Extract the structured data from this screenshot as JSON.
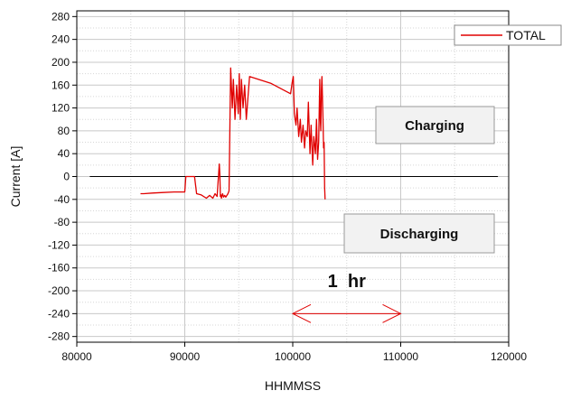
{
  "chart_data": {
    "type": "line",
    "xlabel": "HHMMSS",
    "ylabel": "Current [A]",
    "xlim": [
      80000,
      120000
    ],
    "ylim": [
      -290,
      290
    ],
    "xticks": [
      80000,
      90000,
      100000,
      110000,
      120000
    ],
    "yticks": [
      280,
      240,
      200,
      160,
      120,
      80,
      40,
      0,
      -40,
      -80,
      -120,
      -160,
      -200,
      -240,
      -280
    ],
    "grid": true,
    "legend_position": "top-right",
    "series": [
      {
        "name": "TOTAL",
        "color": "#e00000",
        "x": [
          85900,
          86200,
          87000,
          88000,
          89000,
          90000,
          90100,
          90300,
          90600,
          90900,
          91100,
          91500,
          92000,
          92300,
          92600,
          92800,
          93000,
          93200,
          93250,
          93300,
          93350,
          93400,
          93500,
          93600,
          93700,
          93800,
          94000,
          94100,
          94250,
          94400,
          94500,
          94650,
          94800,
          94950,
          95050,
          95150,
          95250,
          95400,
          95550,
          95700,
          95900,
          96000,
          98000,
          99800,
          99950,
          100050,
          100150,
          100300,
          100400,
          100550,
          100700,
          100800,
          100950,
          101100,
          101200,
          101350,
          101450,
          101600,
          101700,
          101850,
          101950,
          102100,
          102200,
          102300,
          102400,
          102500,
          102550,
          102600,
          102650,
          102700,
          102800,
          102850,
          102900,
          102950,
          103000
        ],
        "y": [
          -30,
          -30,
          -29,
          -28,
          -27,
          -27,
          0,
          0,
          0,
          0,
          -30,
          -32,
          -38,
          -33,
          -38,
          -30,
          -35,
          22,
          5,
          -35,
          -32,
          -38,
          -30,
          -36,
          -33,
          -36,
          -30,
          -25,
          190,
          120,
          170,
          100,
          160,
          110,
          180,
          100,
          170,
          120,
          160,
          100,
          150,
          175,
          163,
          145,
          165,
          175,
          110,
          90,
          120,
          70,
          100,
          60,
          90,
          50,
          80,
          70,
          130,
          40,
          90,
          20,
          70,
          40,
          100,
          30,
          60,
          170,
          100,
          80,
          150,
          175,
          100,
          50,
          60,
          -20,
          -40
        ]
      }
    ],
    "annotations": [
      {
        "text": "Charging",
        "x": 110000,
        "y": 95
      },
      {
        "text": "Discharging",
        "x": 110000,
        "y": -100
      },
      {
        "text": "1  hr",
        "x": 105000,
        "y": -190,
        "arrow_from_x": 100000,
        "arrow_to_x": 110000,
        "arrow_y": -240
      }
    ],
    "zero_line": {
      "y": 0,
      "x_from": 81200,
      "x_to": 119000
    }
  }
}
